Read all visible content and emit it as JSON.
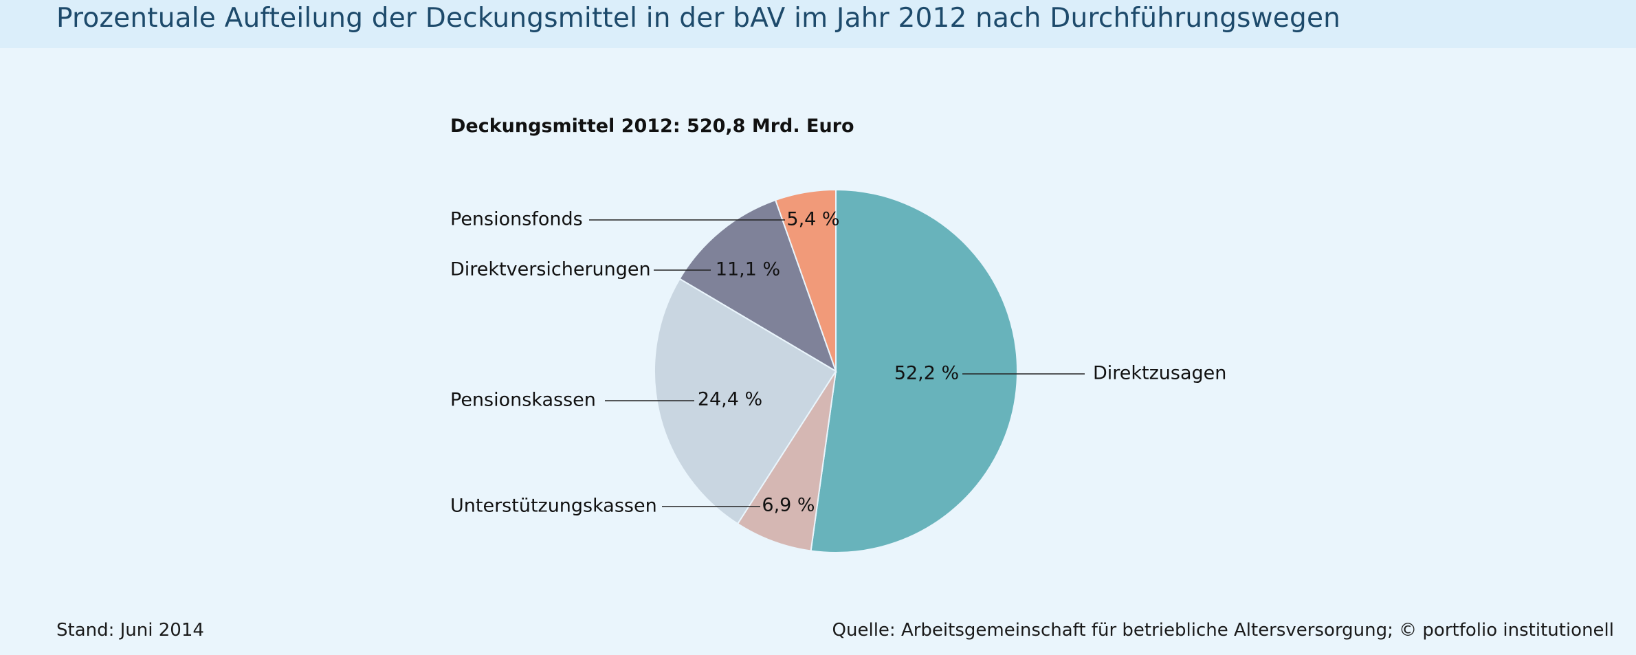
{
  "header": {
    "title": "Prozentuale Aufteilung der Deckungsmittel in der bAV im Jahr 2012 nach Durchführungswegen"
  },
  "chart_data": {
    "type": "pie",
    "subtitle": "Deckungsmittel 2012: 520,8 Mrd. Euro",
    "slices": [
      {
        "label": "Direktzusagen",
        "value": 52.2,
        "value_label": "52,2 %",
        "color": "#68b3bb"
      },
      {
        "label": "Unterstützungskassen",
        "value": 6.9,
        "value_label": "6,9 %",
        "color": "#d5b7b3"
      },
      {
        "label": "Pensionskassen",
        "value": 24.4,
        "value_label": "24,4 %",
        "color": "#c9d6e1"
      },
      {
        "label": "Direktversicherungen",
        "value": 11.1,
        "value_label": "11,1 %",
        "color": "#7f8299"
      },
      {
        "label": "Pensionsfonds",
        "value": 5.4,
        "value_label": "5,4 %",
        "color": "#f19a79"
      }
    ],
    "start": "12 o'clock",
    "direction": "clockwise"
  },
  "footer": {
    "stand": "Stand: Juni 2014",
    "source": "Quelle: Arbeitsgemeinschaft für betriebliche Altersversorgung; © portfolio institutionell"
  }
}
